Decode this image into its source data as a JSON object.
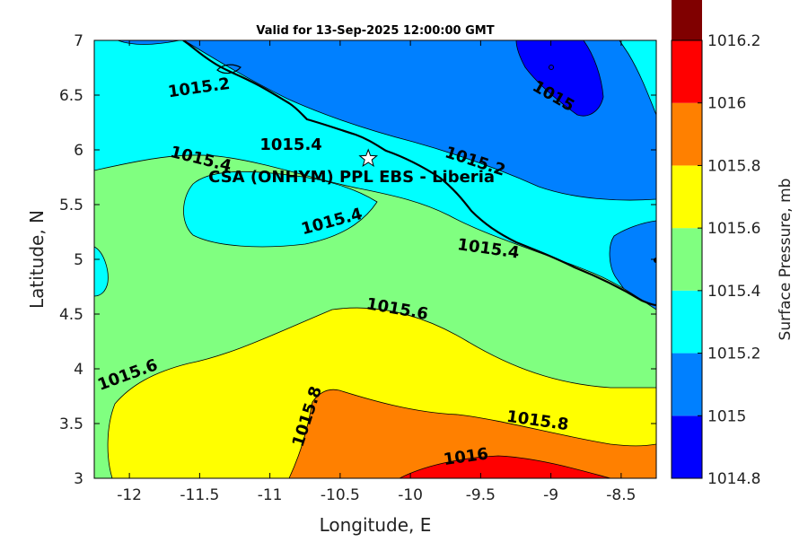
{
  "title": "Valid for 13-Sep-2025 12:00:00 GMT",
  "site_label": "CSA (ONHYM) PPL EBS  - Liberia",
  "chart_data": {
    "type": "contour-map",
    "title": "Valid for 13-Sep-2025 12:00:00 GMT",
    "xlabel": "Longitude, E",
    "ylabel": "Latitude, N",
    "xlim": [
      -12.25,
      -8.25
    ],
    "ylim": [
      3,
      7
    ],
    "xticks": [
      -12,
      -11.5,
      -11,
      -10.5,
      -10,
      -9.5,
      -9,
      -8.5
    ],
    "yticks": [
      3,
      3.5,
      4,
      4.5,
      5,
      5.5,
      6,
      6.5,
      7
    ],
    "grid": false,
    "colorbar": {
      "label": "Surface Pressure, mb",
      "levels": [
        1014.8,
        1015,
        1015.2,
        1015.4,
        1015.6,
        1015.8,
        1016,
        1016.2
      ],
      "colors": [
        "#0000ff",
        "#0080ff",
        "#00ffff",
        "#80ff80",
        "#ffff00",
        "#ff8000",
        "#ff0000",
        "#800000"
      ]
    },
    "contour_labels": [
      {
        "text": "1015.2",
        "lon": -11.5,
        "lat": 6.52
      },
      {
        "text": "1015",
        "lon": -9.0,
        "lat": 6.45
      },
      {
        "text": "1015.4",
        "lon": -10.85,
        "lat": 6.0
      },
      {
        "text": "1015.4",
        "lon": -11.5,
        "lat": 5.87
      },
      {
        "text": "1015.2",
        "lon": -9.55,
        "lat": 5.85
      },
      {
        "text": "1015.4",
        "lon": -10.55,
        "lat": 5.3
      },
      {
        "text": "1015.4",
        "lon": -9.45,
        "lat": 5.05
      },
      {
        "text": "1015.6",
        "lon": -10.1,
        "lat": 4.5
      },
      {
        "text": "1015.6",
        "lon": -12.0,
        "lat": 3.9
      },
      {
        "text": "1015.8",
        "lon": -10.7,
        "lat": 3.55
      },
      {
        "text": "1015.8",
        "lon": -9.1,
        "lat": 3.48
      },
      {
        "text": "1016",
        "lon": -9.6,
        "lat": 3.15
      }
    ],
    "site": {
      "name": "CSA (ONHYM) PPL EBS  - Liberia",
      "lon": -10.3,
      "lat": 5.92
    }
  }
}
